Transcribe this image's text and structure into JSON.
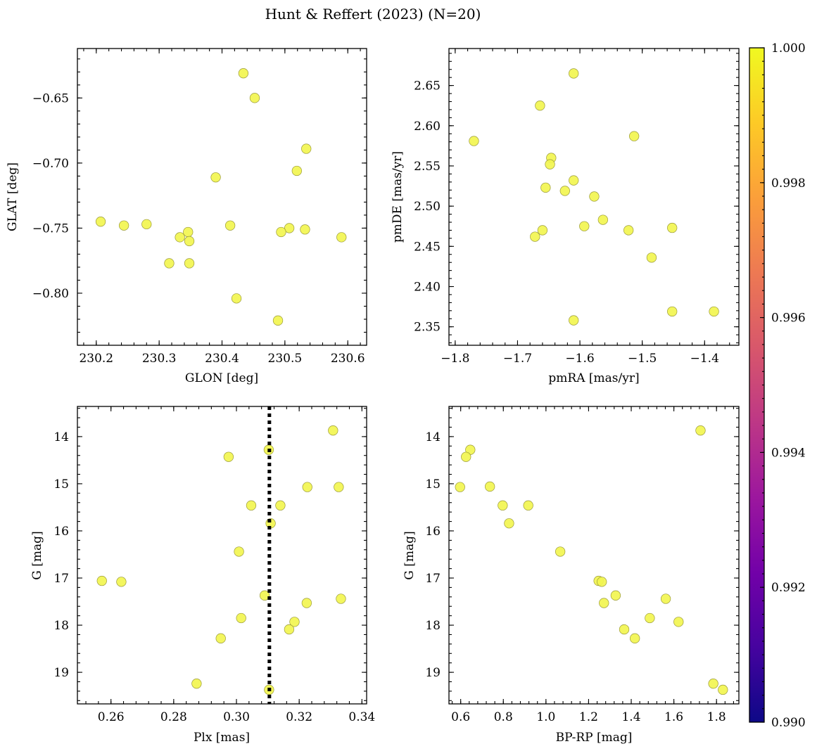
{
  "figure": {
    "title": "Hunt & Reffert (2023) (N=20)"
  },
  "colors": {
    "point_fill": "#f2f550",
    "point_edge": "#9a9a3a",
    "reference_line": "#000000",
    "colormap": [
      "#0d0887",
      "#46039f",
      "#7201a8",
      "#9c179e",
      "#bd3786",
      "#d8576b",
      "#ed7953",
      "#fb9f3a",
      "#fdca26",
      "#f0f921"
    ]
  },
  "colorbar": {
    "min": 0.99,
    "max": 1.0,
    "tick_values": [
      0.99,
      0.992,
      0.994,
      0.996,
      0.998,
      1.0
    ],
    "tick_labels": [
      "0.990",
      "0.992",
      "0.994",
      "0.996",
      "0.998",
      "1.000"
    ]
  },
  "chart_data": [
    {
      "type": "scatter",
      "xlabel": "GLON [deg]",
      "ylabel": "GLAT [deg]",
      "xlim": [
        230.17,
        230.63
      ],
      "ylim": [
        -0.84,
        -0.612
      ],
      "y_inverted": false,
      "xticks": [
        230.2,
        230.3,
        230.4,
        230.5,
        230.6
      ],
      "xtick_labels": [
        "230.2",
        "230.3",
        "230.4",
        "230.5",
        "230.6"
      ],
      "x_minor_step": 0.02,
      "yticks": [
        -0.8,
        -0.75,
        -0.7,
        -0.65
      ],
      "ytick_labels": [
        "−0.80",
        "−0.75",
        "−0.70",
        "−0.65"
      ],
      "y_minor_step": 0.01,
      "x": [
        230.434,
        230.452,
        230.534,
        230.519,
        230.39,
        230.207,
        230.244,
        230.28,
        230.413,
        230.507,
        230.532,
        230.494,
        230.59,
        230.346,
        230.333,
        230.348,
        230.316,
        230.348,
        230.423,
        230.489
      ],
      "y": [
        -0.631,
        -0.65,
        -0.689,
        -0.706,
        -0.711,
        -0.745,
        -0.748,
        -0.747,
        -0.748,
        -0.75,
        -0.751,
        -0.753,
        -0.757,
        -0.753,
        -0.757,
        -0.76,
        -0.777,
        -0.777,
        -0.804,
        -0.821
      ]
    },
    {
      "type": "scatter",
      "xlabel": "pmRA [mas/yr]",
      "ylabel": "pmDE [mas/yr]",
      "xlim": [
        -1.81,
        -1.345
      ],
      "ylim": [
        2.327,
        2.696
      ],
      "y_inverted": false,
      "xticks": [
        -1.8,
        -1.7,
        -1.6,
        -1.5,
        -1.4
      ],
      "xtick_labels": [
        "−1.8",
        "−1.7",
        "−1.6",
        "−1.5",
        "−1.4"
      ],
      "x_minor_step": 0.02,
      "yticks": [
        2.35,
        2.4,
        2.45,
        2.5,
        2.55,
        2.6,
        2.65
      ],
      "ytick_labels": [
        "2.35",
        "2.40",
        "2.45",
        "2.50",
        "2.55",
        "2.60",
        "2.65"
      ],
      "y_minor_step": 0.01,
      "x": [
        -1.61,
        -1.664,
        -1.77,
        -1.513,
        -1.646,
        -1.648,
        -1.61,
        -1.655,
        -1.624,
        -1.577,
        -1.563,
        -1.593,
        -1.452,
        -1.522,
        -1.66,
        -1.672,
        -1.485,
        -1.452,
        -1.385,
        -1.61
      ],
      "y": [
        2.665,
        2.625,
        2.581,
        2.587,
        2.56,
        2.552,
        2.532,
        2.523,
        2.519,
        2.512,
        2.483,
        2.475,
        2.473,
        2.47,
        2.47,
        2.462,
        2.436,
        2.369,
        2.369,
        2.358
      ]
    },
    {
      "type": "scatter",
      "xlabel": "Plx [mas]",
      "ylabel": "G [mag]",
      "xlim": [
        0.2493,
        0.3415
      ],
      "ylim": [
        13.36,
        19.67
      ],
      "y_inverted": true,
      "xticks": [
        0.26,
        0.28,
        0.3,
        0.32,
        0.34
      ],
      "xtick_labels": [
        "0.26",
        "0.28",
        "0.30",
        "0.32",
        "0.34"
      ],
      "x_minor_step": 0.004,
      "yticks": [
        14,
        15,
        16,
        17,
        18,
        19
      ],
      "ytick_labels": [
        "14",
        "15",
        "16",
        "17",
        "18",
        "19"
      ],
      "y_minor_step": 0.2,
      "reference_x": 0.3105,
      "x": [
        0.3308,
        0.3103,
        0.2975,
        0.3226,
        0.3326,
        0.3047,
        0.314,
        0.3109,
        0.3008,
        0.2571,
        0.2633,
        0.309,
        0.3333,
        0.3224,
        0.3015,
        0.3185,
        0.3168,
        0.295,
        0.2873,
        0.3104
      ],
      "y": [
        13.87,
        14.28,
        14.43,
        15.07,
        15.07,
        15.46,
        15.46,
        15.84,
        16.44,
        17.06,
        17.08,
        17.37,
        17.44,
        17.53,
        17.85,
        17.93,
        18.09,
        18.28,
        19.24,
        19.37
      ]
    },
    {
      "type": "scatter",
      "xlabel": "BP-RP [mag]",
      "ylabel": "G [mag]",
      "xlim": [
        0.545,
        1.905
      ],
      "ylim": [
        13.36,
        19.67
      ],
      "y_inverted": true,
      "xticks": [
        0.6,
        0.8,
        1.0,
        1.2,
        1.4,
        1.6,
        1.8
      ],
      "xtick_labels": [
        "0.6",
        "0.8",
        "1.0",
        "1.2",
        "1.4",
        "1.6",
        "1.8"
      ],
      "x_minor_step": 0.04,
      "yticks": [
        14,
        15,
        16,
        17,
        18,
        19
      ],
      "ytick_labels": [
        "14",
        "15",
        "16",
        "17",
        "18",
        "19"
      ],
      "y_minor_step": 0.2,
      "x": [
        1.725,
        0.645,
        0.625,
        0.597,
        0.737,
        0.797,
        0.917,
        0.827,
        1.067,
        1.247,
        1.262,
        1.327,
        1.562,
        1.272,
        1.487,
        1.622,
        1.367,
        1.417,
        1.785,
        1.83
      ],
      "y": [
        13.87,
        14.28,
        14.43,
        15.07,
        15.06,
        15.46,
        15.46,
        15.84,
        16.44,
        17.06,
        17.08,
        17.37,
        17.44,
        17.53,
        17.85,
        17.93,
        18.09,
        18.28,
        19.24,
        19.37
      ]
    }
  ]
}
